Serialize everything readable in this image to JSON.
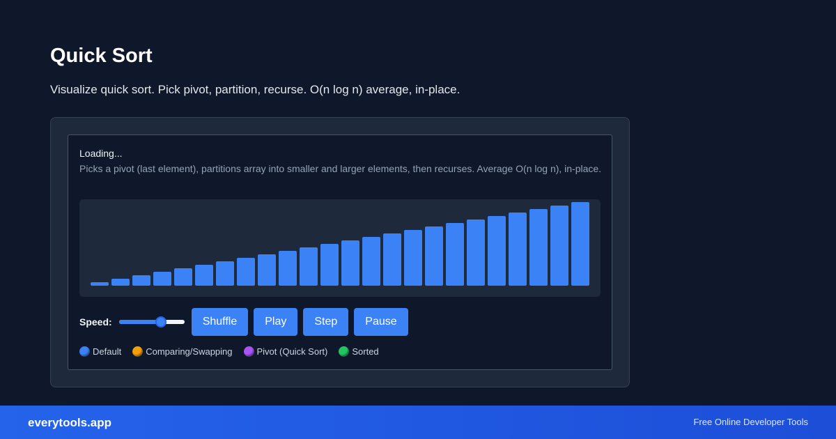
{
  "page": {
    "title": "Quick Sort",
    "subtitle": "Visualize quick sort. Pick pivot, partition, recurse. O(n log n) average, in-place."
  },
  "visualizer": {
    "status": "Loading...",
    "description": "Picks a pivot (last element), partitions array into smaller and larger elements, then recurses. Average O(n log n), in-place.",
    "bar_color": "#3b82f6",
    "bar_values": [
      1,
      2,
      3,
      4,
      5,
      6,
      7,
      8,
      9,
      10,
      11,
      12,
      13,
      14,
      15,
      16,
      17,
      18,
      19,
      20,
      21,
      22,
      23,
      24
    ]
  },
  "controls": {
    "speed_label": "Speed:",
    "speed_value": 0.67,
    "shuffle_label": "Shuffle",
    "play_label": "Play",
    "step_label": "Step",
    "pause_label": "Pause"
  },
  "legend": [
    {
      "label": "Default",
      "color": "#3b82f6"
    },
    {
      "label": "Comparing/Swapping",
      "color": "#f59e0b"
    },
    {
      "label": "Pivot (Quick Sort)",
      "color": "#a855f7"
    },
    {
      "label": "Sorted",
      "color": "#22c55e"
    }
  ],
  "footer": {
    "brand": "everytools.app",
    "tagline": "Free Online Developer Tools"
  }
}
